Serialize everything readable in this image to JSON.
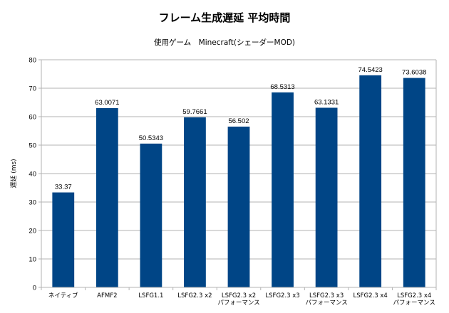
{
  "chart_data": {
    "type": "bar",
    "title": "フレーム生成遅延 平均時間",
    "subtitle": "使用ゲーム　Minecraft(シェーダーMOD)",
    "ylabel": "遅延 (ms)",
    "xlabel": "",
    "ylim": [
      0,
      80
    ],
    "yticks": [
      0,
      10,
      20,
      30,
      40,
      50,
      60,
      70,
      80
    ],
    "grid": true,
    "bar_color": "#004586",
    "categories": [
      [
        "ネイティブ"
      ],
      [
        "AFMF2"
      ],
      [
        "LSFG1.1"
      ],
      [
        "LSFG2.3 x2"
      ],
      [
        "LSFG2.3 x2",
        "パフォーマンス"
      ],
      [
        "LSFG2.3 x3"
      ],
      [
        "LSFG2.3 x3",
        "パフォーマンス"
      ],
      [
        "LSFG2.3 x4"
      ],
      [
        "LSFG2.3 x4",
        "パフォーマンス"
      ]
    ],
    "values": [
      33.37,
      63.0071,
      50.5343,
      59.7661,
      56.502,
      68.5313,
      63.1331,
      74.5423,
      73.6038
    ],
    "data_labels": [
      "33.37",
      "63.0071",
      "50.5343",
      "59.7661",
      "56.502",
      "68.5313",
      "63.1331",
      "74.5423",
      "73.6038"
    ]
  }
}
